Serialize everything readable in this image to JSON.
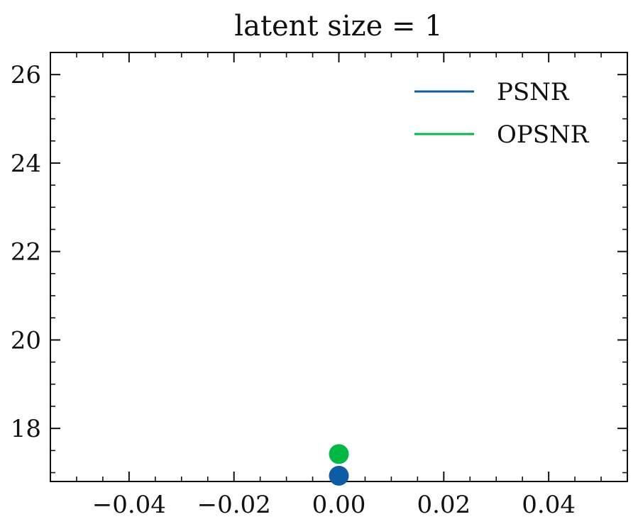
{
  "chart_data": {
    "type": "scatter",
    "title": "latent size = 1",
    "xlabel": "",
    "ylabel": "",
    "xlim": [
      -0.055,
      0.055
    ],
    "ylim": [
      16.8,
      26.5
    ],
    "x_ticks": [
      -0.04,
      -0.02,
      0.0,
      0.02,
      0.04
    ],
    "x_tick_labels": [
      "−0.04",
      "−0.02",
      "0.00",
      "0.02",
      "0.04"
    ],
    "y_ticks": [
      18,
      20,
      22,
      24,
      26
    ],
    "y_tick_labels": [
      "18",
      "20",
      "22",
      "24",
      "26"
    ],
    "grid": false,
    "legend_position": "top-right",
    "series": [
      {
        "name": "PSNR",
        "color": "#0C5DA5",
        "x": [
          0.0
        ],
        "y": [
          16.93
        ]
      },
      {
        "name": "OPSNR",
        "color": "#00B945",
        "x": [
          0.0
        ],
        "y": [
          17.42
        ]
      }
    ]
  }
}
